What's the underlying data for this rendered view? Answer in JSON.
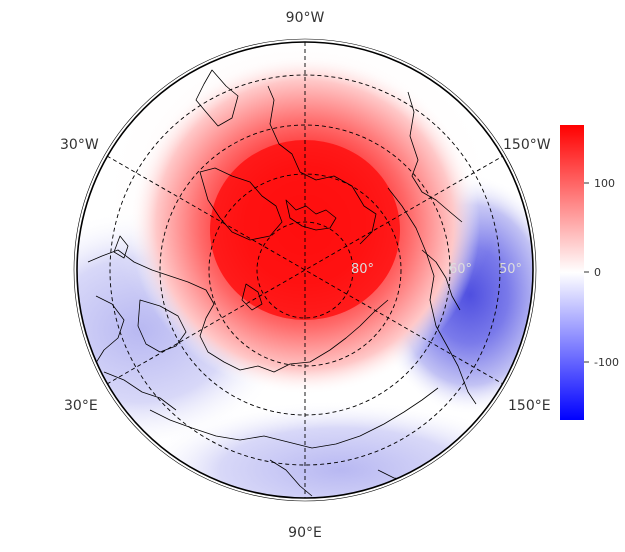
{
  "map": {
    "projection": "north-polar-stereographic",
    "meridian_labels": {
      "top": "90°W",
      "upper_left": "30°W",
      "upper_right": "150°W",
      "lower_left": "30°E",
      "lower_right": "150°E",
      "bottom": "90°E"
    },
    "latitude_labels": [
      "80°",
      "60°",
      "50°"
    ],
    "grid": true,
    "field": {
      "high_center_color": "#ff0000",
      "low_center_color": "#4f4fe0"
    }
  },
  "colorbar": {
    "ticks": [
      "100",
      "0",
      "-100"
    ],
    "range": [
      -170,
      170
    ],
    "colors": {
      "max": "#ff0000",
      "mid": "#ffffff",
      "min": "#0000ff"
    }
  }
}
